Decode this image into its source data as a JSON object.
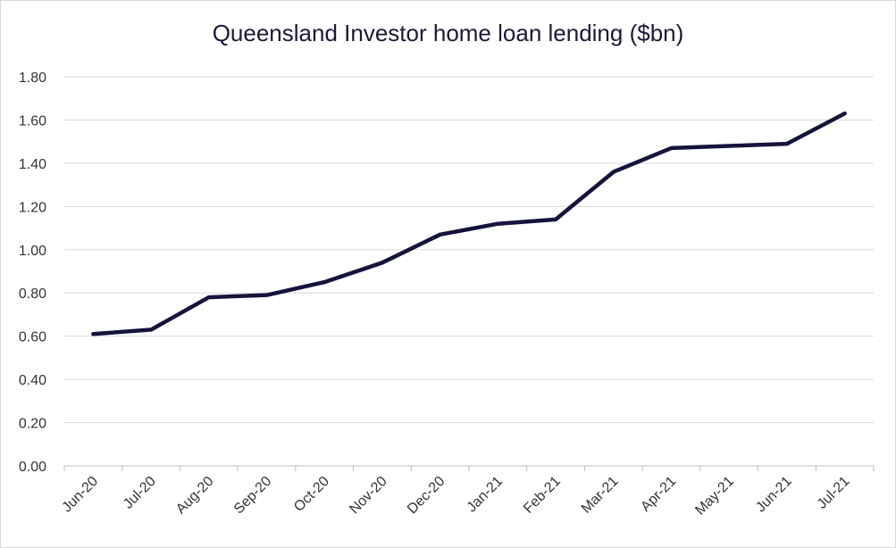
{
  "chart_data": {
    "type": "line",
    "title": "Queensland Investor home loan lending ($bn)",
    "xlabel": "",
    "ylabel": "",
    "categories": [
      "Jun-20",
      "Jul-20",
      "Aug-20",
      "Sep-20",
      "Oct-20",
      "Nov-20",
      "Dec-20",
      "Jan-21",
      "Feb-21",
      "Mar-21",
      "Apr-21",
      "May-21",
      "Jun-21",
      "Jul-21"
    ],
    "series": [
      {
        "name": "",
        "values": [
          0.61,
          0.63,
          0.78,
          0.79,
          0.85,
          0.94,
          1.07,
          1.12,
          1.14,
          1.36,
          1.47,
          1.48,
          1.49,
          1.63
        ]
      }
    ],
    "ylim": [
      0,
      1.8
    ],
    "yticks": [
      "0.00",
      "0.20",
      "0.40",
      "0.60",
      "0.80",
      "1.00",
      "1.20",
      "1.40",
      "1.60",
      "1.80"
    ],
    "grid": true,
    "legend": "none",
    "colors": {
      "line": "#14143c",
      "grid": "#d9d9d9",
      "axis": "#bfbfbf"
    }
  }
}
